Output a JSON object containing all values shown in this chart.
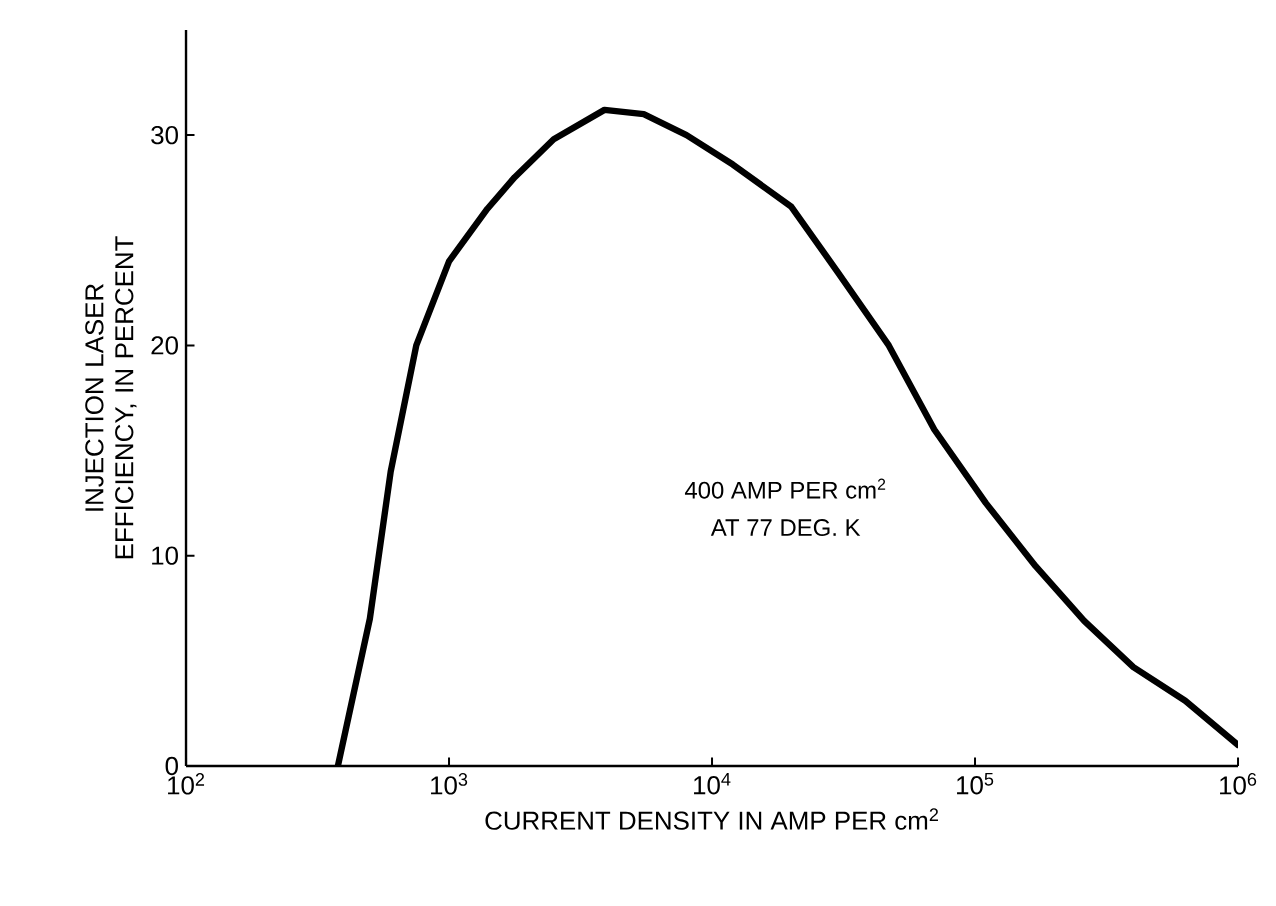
{
  "chart_data": {
    "type": "line",
    "xlabel": "CURRENT DENSITY IN AMP PER cm$^{2}$",
    "ylabel": "INJECTION LASER EFFICIENCY, IN PERCENT",
    "x": [
      378,
      500,
      600,
      751,
      1000,
      1400,
      1778,
      2500,
      3900,
      5500,
      8000,
      12000,
      20000,
      30000,
      47000,
      70000,
      110000,
      170000,
      260000,
      400000,
      630000,
      1000000
    ],
    "series": [
      {
        "color": "#000000",
        "values": [
          0,
          7,
          14,
          20,
          24,
          26.5,
          28,
          29.8,
          31.2,
          31,
          30,
          28.6,
          26.6,
          23.5,
          20,
          16,
          12.5,
          9.5,
          6.9,
          4.7,
          3.1,
          1
        ]
      }
    ],
    "log": "x",
    "xlim": [
      100,
      1000000
    ],
    "ylim": [
      0,
      35
    ],
    "xticks": [
      {
        "value": 100,
        "label": "10$^{2}$"
      },
      {
        "value": 1000,
        "label": "10$^{3}$"
      },
      {
        "value": 10000,
        "label": "10$^{4}$"
      },
      {
        "value": 100000,
        "label": "10$^{5}$"
      },
      {
        "value": 1000000,
        "label": "10$^{6}$"
      }
    ],
    "yticks": [
      0,
      10,
      20,
      30
    ],
    "annotations": [
      "400 AMP PER cm$^{2}$",
      "AT 77 DEG. K"
    ],
    "grid": false,
    "marker": "none",
    "line_style": "solid"
  }
}
